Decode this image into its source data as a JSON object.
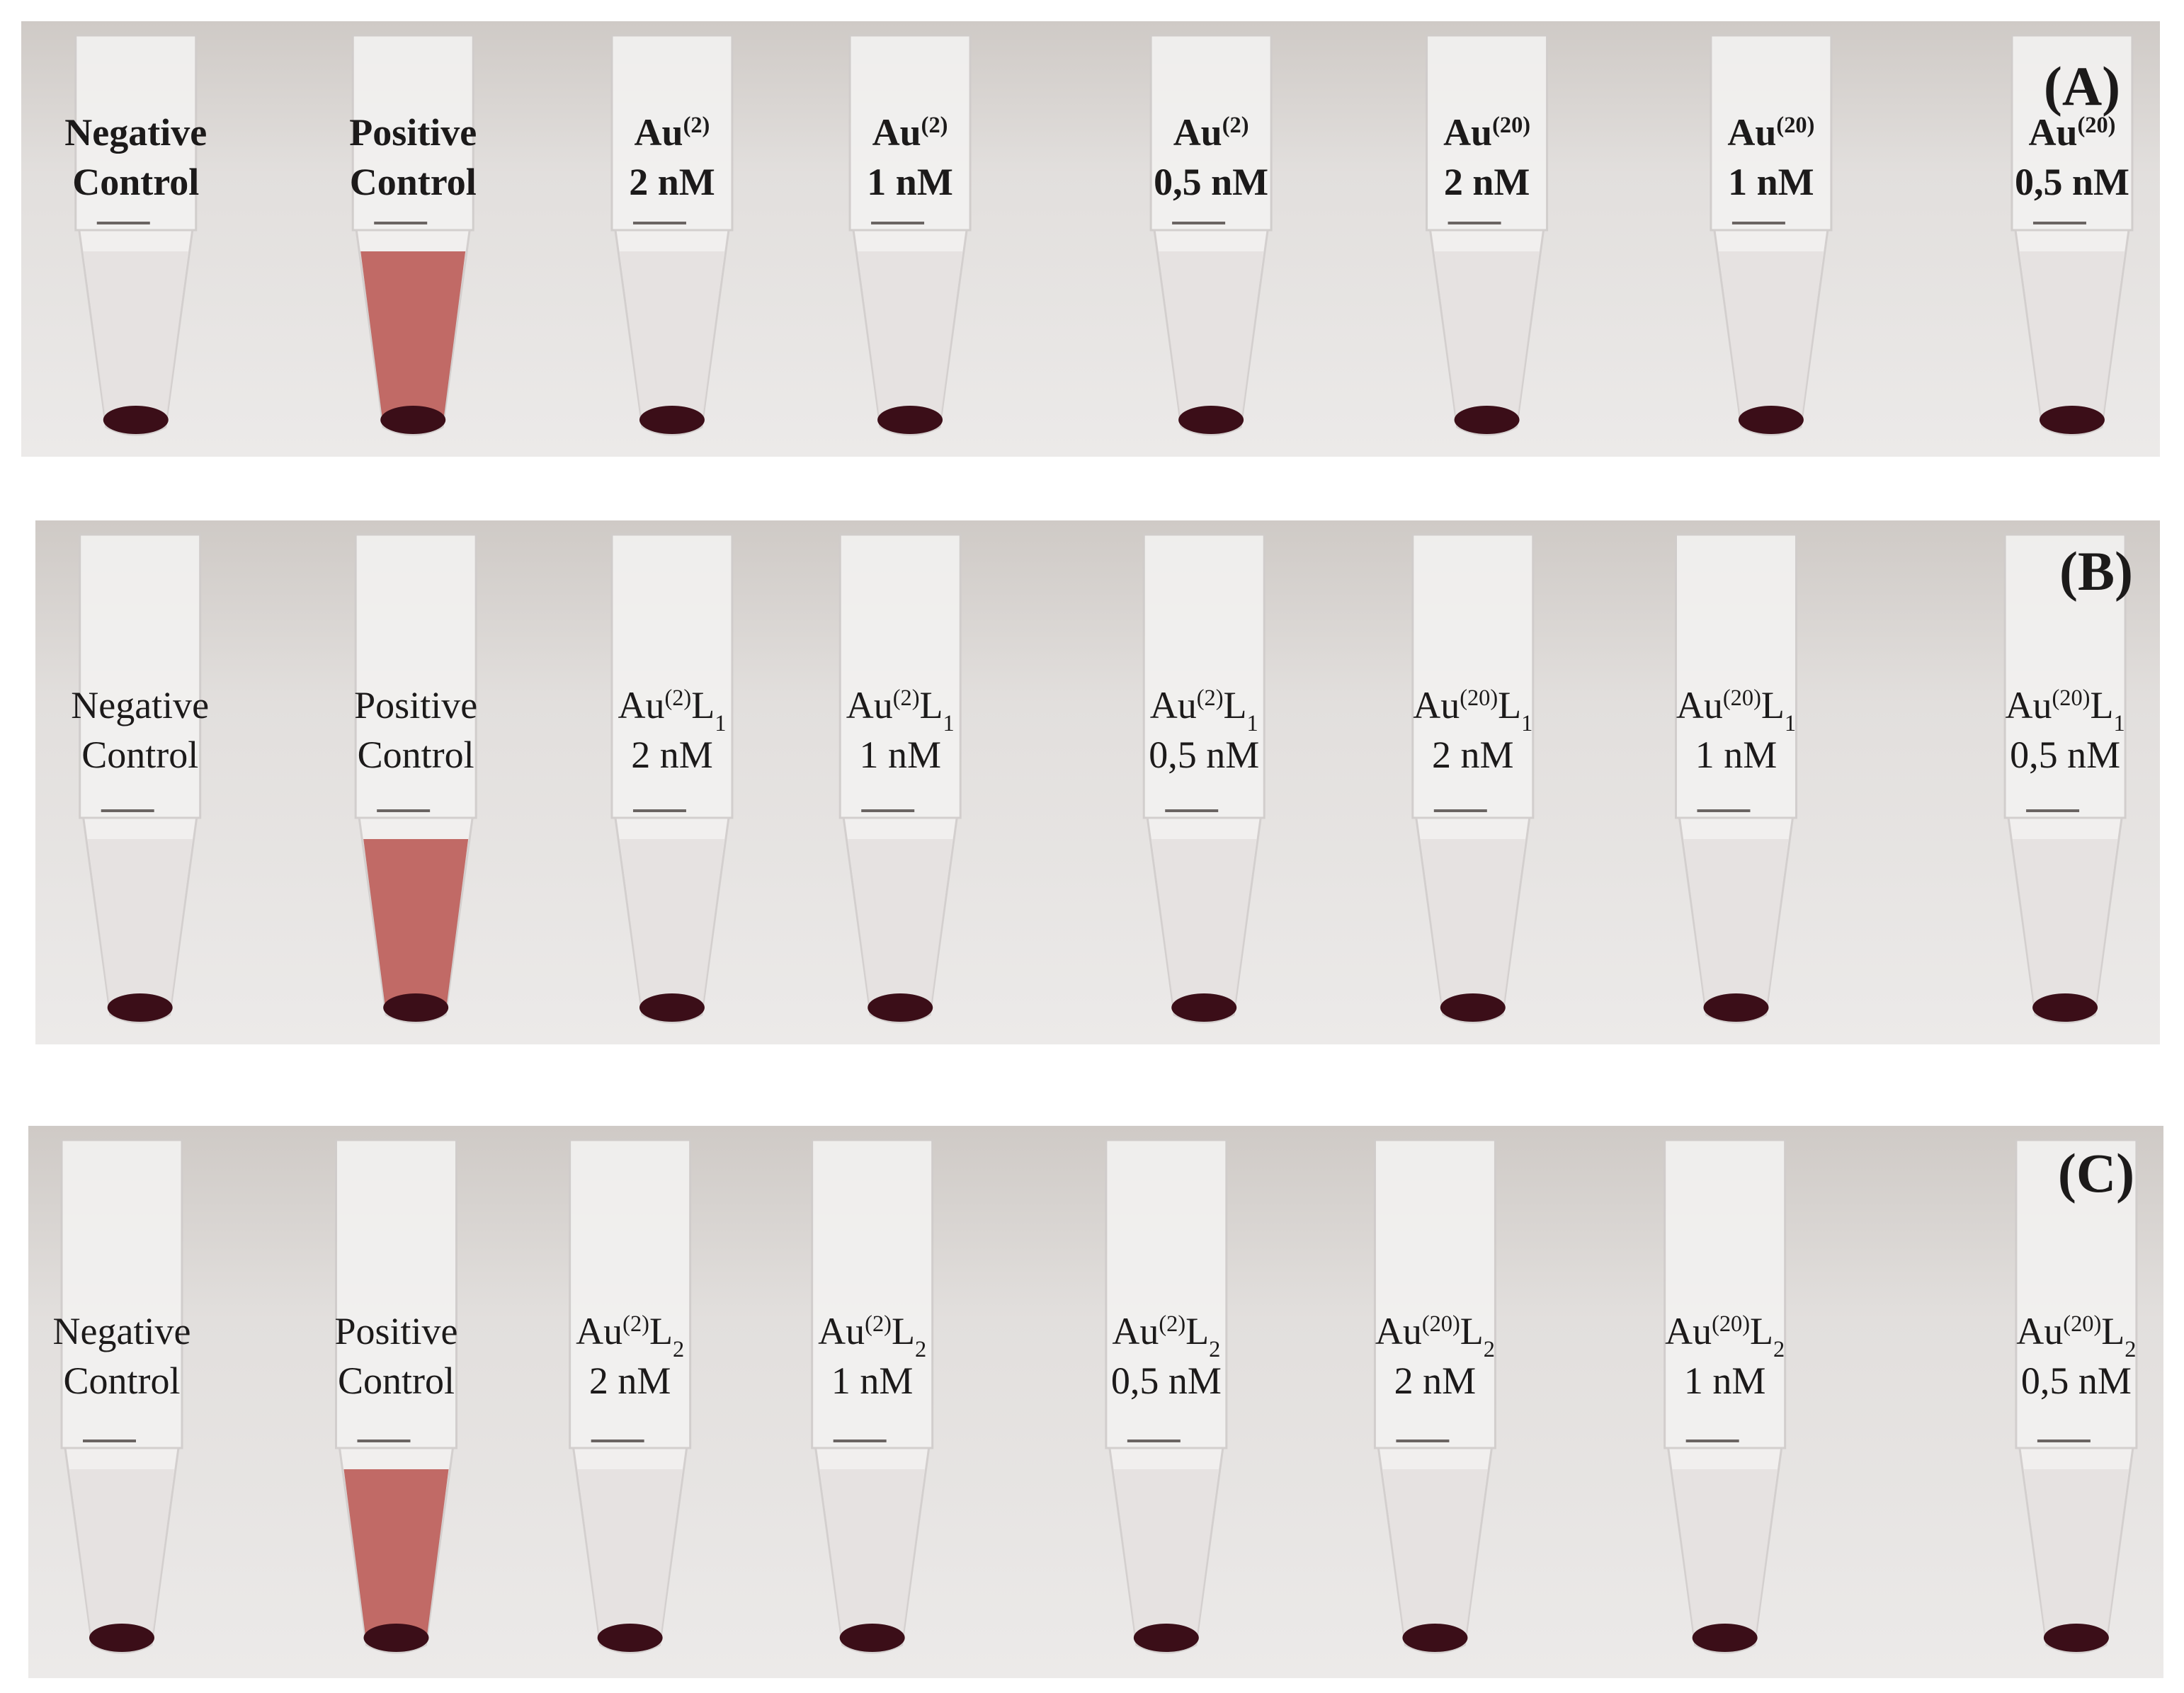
{
  "pellet_color": "#3b0e18",
  "panels": [
    {
      "label": "(A)",
      "tubes": [
        {
          "liquid": "#e4dfde",
          "lines": [
            [
              {
                "text": "Negative"
              }
            ],
            [
              {
                "text": "Control"
              }
            ]
          ]
        },
        {
          "liquid": "#b9524e",
          "lines": [
            [
              {
                "text": "Positive"
              }
            ],
            [
              {
                "text": "Control"
              }
            ]
          ]
        },
        {
          "liquid": "#e4dfde",
          "lines": [
            [
              {
                "text": "Au"
              },
              {
                "text": "(2)",
                "style": "sup"
              }
            ],
            [
              {
                "text": "2 nM"
              }
            ]
          ]
        },
        {
          "liquid": "#e4dfde",
          "lines": [
            [
              {
                "text": "Au"
              },
              {
                "text": "(2)",
                "style": "sup"
              }
            ],
            [
              {
                "text": "1 nM"
              }
            ]
          ]
        },
        {
          "liquid": "#e4dfde",
          "lines": [
            [
              {
                "text": "Au"
              },
              {
                "text": "(2)",
                "style": "sup"
              }
            ],
            [
              {
                "text": "0,5 nM"
              }
            ]
          ]
        },
        {
          "liquid": "#e4dfde",
          "lines": [
            [
              {
                "text": "Au"
              },
              {
                "text": "(20)",
                "style": "sup"
              }
            ],
            [
              {
                "text": "2 nM"
              }
            ]
          ]
        },
        {
          "liquid": "#e4dfde",
          "lines": [
            [
              {
                "text": "Au"
              },
              {
                "text": "(20)",
                "style": "sup"
              }
            ],
            [
              {
                "text": "1 nM"
              }
            ]
          ]
        },
        {
          "liquid": "#e4dfde",
          "lines": [
            [
              {
                "text": "Au"
              },
              {
                "text": "(20)",
                "style": "sup"
              }
            ],
            [
              {
                "text": "0,5 nM"
              }
            ]
          ]
        }
      ]
    },
    {
      "label": "(B)",
      "tubes": [
        {
          "liquid": "#e4dfde",
          "lines": [
            [
              {
                "text": "Negative"
              }
            ],
            [
              {
                "text": "Control"
              }
            ]
          ]
        },
        {
          "liquid": "#b9524e",
          "lines": [
            [
              {
                "text": "Positive"
              }
            ],
            [
              {
                "text": "Control"
              }
            ]
          ]
        },
        {
          "liquid": "#e4dfde",
          "lines": [
            [
              {
                "text": "Au"
              },
              {
                "text": "(2)",
                "style": "sup"
              },
              {
                "text": "L"
              },
              {
                "text": "1",
                "style": "sub"
              }
            ],
            [
              {
                "text": "2 nM"
              }
            ]
          ]
        },
        {
          "liquid": "#e4dfde",
          "lines": [
            [
              {
                "text": "Au"
              },
              {
                "text": "(2)",
                "style": "sup"
              },
              {
                "text": "L"
              },
              {
                "text": "1",
                "style": "sub"
              }
            ],
            [
              {
                "text": "1 nM"
              }
            ]
          ]
        },
        {
          "liquid": "#e4dfde",
          "lines": [
            [
              {
                "text": "Au"
              },
              {
                "text": "(2)",
                "style": "sup"
              },
              {
                "text": "L"
              },
              {
                "text": "1",
                "style": "sub"
              }
            ],
            [
              {
                "text": "0,5 nM"
              }
            ]
          ]
        },
        {
          "liquid": "#e4dfde",
          "lines": [
            [
              {
                "text": "Au"
              },
              {
                "text": "(20)",
                "style": "sup"
              },
              {
                "text": "L"
              },
              {
                "text": "1",
                "style": "sub"
              }
            ],
            [
              {
                "text": "2 nM"
              }
            ]
          ]
        },
        {
          "liquid": "#e4dfde",
          "lines": [
            [
              {
                "text": "Au"
              },
              {
                "text": "(20)",
                "style": "sup"
              },
              {
                "text": "L"
              },
              {
                "text": "1",
                "style": "sub"
              }
            ],
            [
              {
                "text": "1 nM"
              }
            ]
          ]
        },
        {
          "liquid": "#e4dfde",
          "lines": [
            [
              {
                "text": "Au"
              },
              {
                "text": "(20)",
                "style": "sup"
              },
              {
                "text": "L"
              },
              {
                "text": "1",
                "style": "sub"
              }
            ],
            [
              {
                "text": "0,5 nM"
              }
            ]
          ]
        }
      ]
    },
    {
      "label": "(C)",
      "tubes": [
        {
          "liquid": "#e4dfde",
          "lines": [
            [
              {
                "text": "Negative"
              }
            ],
            [
              {
                "text": "Control"
              }
            ]
          ]
        },
        {
          "liquid": "#b9524e",
          "lines": [
            [
              {
                "text": "Positive"
              }
            ],
            [
              {
                "text": "Control"
              }
            ]
          ]
        },
        {
          "liquid": "#e4dfde",
          "lines": [
            [
              {
                "text": "Au"
              },
              {
                "text": "(2)",
                "style": "sup"
              },
              {
                "text": "L"
              },
              {
                "text": "2",
                "style": "sub"
              }
            ],
            [
              {
                "text": "2 nM"
              }
            ]
          ]
        },
        {
          "liquid": "#e4dfde",
          "lines": [
            [
              {
                "text": "Au"
              },
              {
                "text": "(2)",
                "style": "sup"
              },
              {
                "text": "L"
              },
              {
                "text": "2",
                "style": "sub"
              }
            ],
            [
              {
                "text": "1 nM"
              }
            ]
          ]
        },
        {
          "liquid": "#e4dfde",
          "lines": [
            [
              {
                "text": "Au"
              },
              {
                "text": "(2)",
                "style": "sup"
              },
              {
                "text": "L"
              },
              {
                "text": "2",
                "style": "sub"
              }
            ],
            [
              {
                "text": "0,5 nM"
              }
            ]
          ]
        },
        {
          "liquid": "#e4dfde",
          "lines": [
            [
              {
                "text": "Au"
              },
              {
                "text": "(20)",
                "style": "sup"
              },
              {
                "text": "L"
              },
              {
                "text": "2",
                "style": "sub"
              }
            ],
            [
              {
                "text": "2 nM"
              }
            ]
          ]
        },
        {
          "liquid": "#e4dfde",
          "lines": [
            [
              {
                "text": "Au"
              },
              {
                "text": "(20)",
                "style": "sup"
              },
              {
                "text": "L"
              },
              {
                "text": "2",
                "style": "sub"
              }
            ],
            [
              {
                "text": "1 nM"
              }
            ]
          ]
        },
        {
          "liquid": "#e4dfde",
          "lines": [
            [
              {
                "text": "Au"
              },
              {
                "text": "(20)",
                "style": "sup"
              },
              {
                "text": "L"
              },
              {
                "text": "2",
                "style": "sub"
              }
            ],
            [
              {
                "text": "0,5 nM"
              }
            ]
          ]
        }
      ]
    }
  ]
}
